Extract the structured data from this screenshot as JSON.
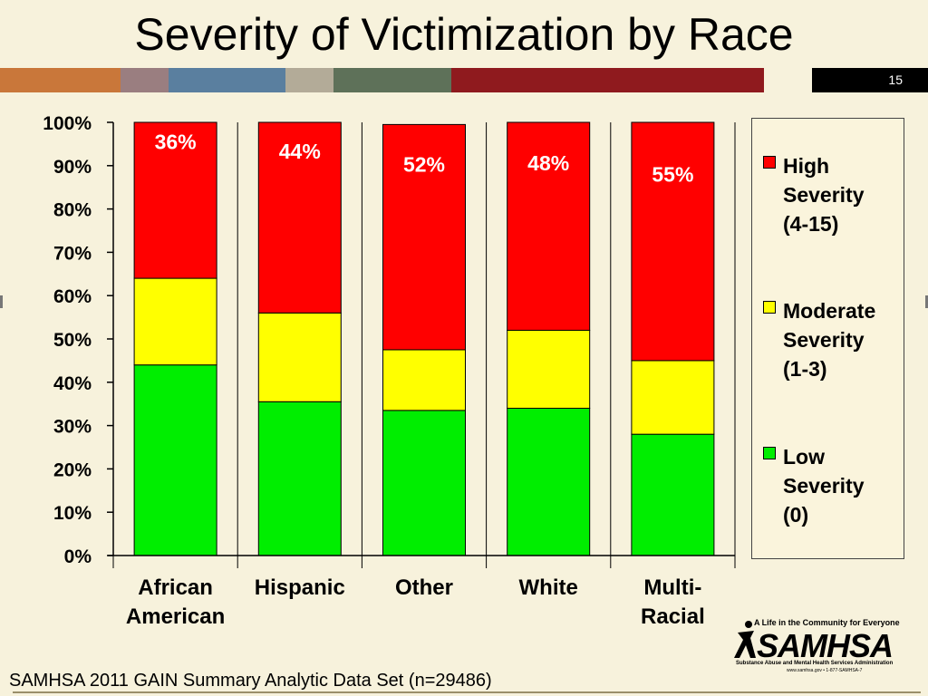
{
  "slide": {
    "title": "Severity of Victimization by Race",
    "number": "15",
    "source": "SAMHSA 2011 GAIN Summary Analytic Data Set (n=29486)"
  },
  "stripe_colors": [
    "#c9773a",
    "#9a7e80",
    "#5a7f9f",
    "#b3ab98",
    "#5e7159",
    "#8f1a1e",
    "#f7f2dc",
    "#000000"
  ],
  "logo": {
    "tagline": "A Life in the Community for Everyone",
    "name": "SAMHSA",
    "subtitle": "Substance Abuse and Mental Health Services Administration",
    "contact": "www.samhsa.gov • 1-877-SAMHSA-7"
  },
  "chart_data": {
    "type": "bar",
    "stacked": true,
    "percent_scale": true,
    "categories": [
      "African\nAmerican",
      "Hispanic",
      "Other",
      "White",
      "Multi-\nRacial"
    ],
    "series": [
      {
        "name": "Low\nSeverity\n(0)",
        "color": "#00ee00",
        "values": [
          44,
          35.5,
          33.5,
          34,
          28
        ]
      },
      {
        "name": "Moderate\nSeverity\n(1-3)",
        "color": "#ffff00",
        "values": [
          20,
          20.5,
          14,
          18,
          17
        ]
      },
      {
        "name": "High\nSeverity\n(4-15)",
        "color": "#ff0000",
        "values": [
          36,
          44,
          52,
          48,
          55
        ],
        "labels": [
          "36%",
          "44%",
          "52%",
          "48%",
          "55%"
        ]
      }
    ],
    "legend_order": [
      2,
      1,
      0
    ],
    "yticks": [
      "0%",
      "10%",
      "20%",
      "30%",
      "40%",
      "50%",
      "60%",
      "70%",
      "80%",
      "90%",
      "100%"
    ],
    "ylim": [
      0,
      100
    ],
    "legend_position": "right",
    "grid": false
  }
}
